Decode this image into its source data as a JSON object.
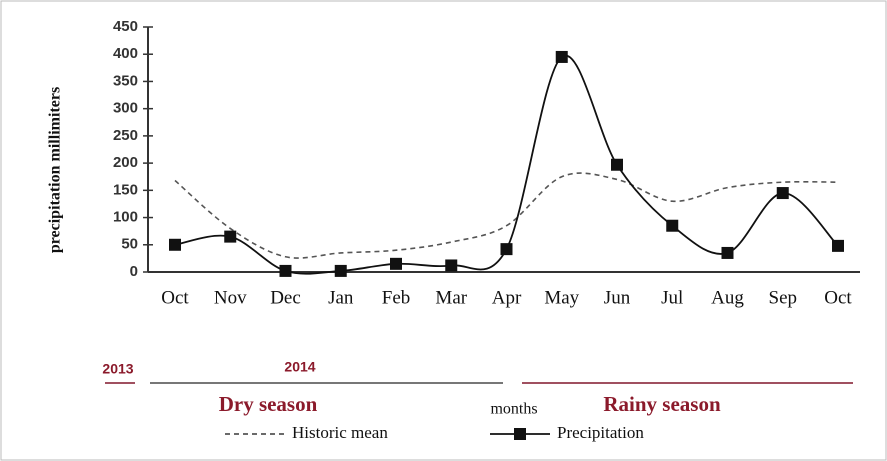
{
  "chart_data": {
    "type": "line",
    "y_label": "precipitation millimiters",
    "x_label": "months",
    "categories": [
      "Oct",
      "Nov",
      "Dec",
      "Jan",
      "Feb",
      "Mar",
      "Apr",
      "May",
      "Jun",
      "Jul",
      "Aug",
      "Sep",
      "Oct"
    ],
    "series": [
      {
        "name": "Historic mean",
        "color": "#555555",
        "dashed": true,
        "marker": null,
        "values": [
          168,
          80,
          28,
          35,
          40,
          55,
          85,
          175,
          170,
          130,
          155,
          165,
          165
        ]
      },
      {
        "name": "Precipitation",
        "color": "#111111",
        "dashed": false,
        "marker": "square",
        "values": [
          50,
          65,
          2,
          2,
          15,
          12,
          42,
          395,
          197,
          85,
          35,
          145,
          48
        ]
      }
    ],
    "ylim": [
      0,
      450
    ],
    "yticks": [
      0,
      50,
      100,
      150,
      200,
      250,
      300,
      350,
      400,
      450
    ],
    "annotations": {
      "year_start": "2013",
      "year_main": "2014",
      "dry": "Dry season",
      "rainy": "Rainy season"
    }
  }
}
